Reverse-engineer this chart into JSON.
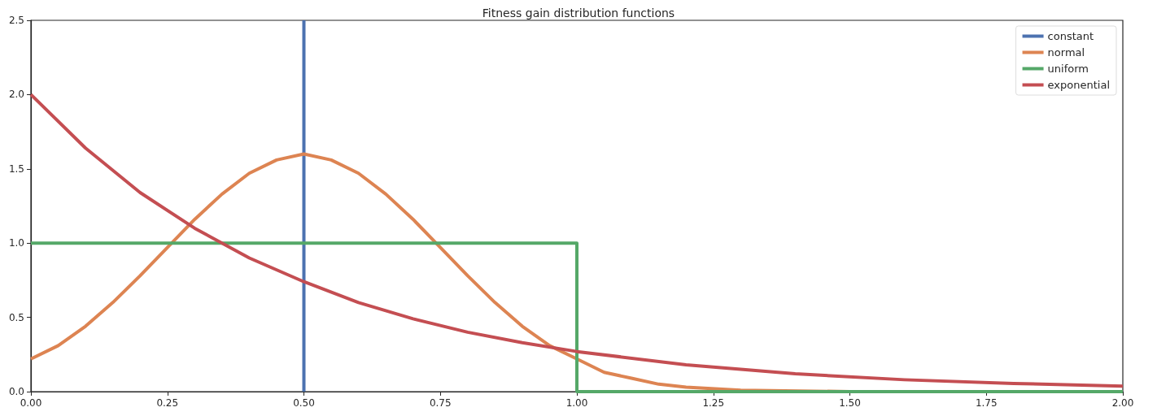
{
  "chart_data": {
    "type": "line",
    "title": "Fitness gain distribution functions",
    "xlim": [
      0,
      2
    ],
    "ylim": [
      0,
      2.5
    ],
    "xticks": [
      {
        "value": 0,
        "label": "0.00"
      },
      {
        "value": 0.25,
        "label": "0.25"
      },
      {
        "value": 0.5,
        "label": "0.50"
      },
      {
        "value": 0.75,
        "label": "0.75"
      },
      {
        "value": 1,
        "label": "1.00"
      },
      {
        "value": 1.25,
        "label": "1.25"
      },
      {
        "value": 1.5,
        "label": "1.50"
      },
      {
        "value": 1.75,
        "label": "1.75"
      },
      {
        "value": 2,
        "label": "2.00"
      }
    ],
    "yticks": [
      {
        "value": 0,
        "label": "0.0"
      },
      {
        "value": 0.5,
        "label": "0.5"
      },
      {
        "value": 1,
        "label": "1.0"
      },
      {
        "value": 1.5,
        "label": "1.5"
      },
      {
        "value": 2,
        "label": "2.0"
      },
      {
        "value": 2.5,
        "label": "2.5"
      }
    ],
    "grid": false,
    "legend": "top right",
    "marker": "none",
    "line_style": "solid",
    "series": [
      {
        "name": "constant",
        "color": "#4c72b0",
        "x": [
          0.5,
          0.5
        ],
        "values": [
          0,
          2.5
        ]
      },
      {
        "name": "normal",
        "color": "#dd8452",
        "x": [
          0,
          0.05,
          0.1,
          0.15,
          0.2,
          0.25,
          0.3,
          0.35,
          0.4,
          0.45,
          0.5,
          0.55,
          0.6,
          0.65,
          0.7,
          0.75,
          0.8,
          0.85,
          0.9,
          0.95,
          1,
          1.05,
          1.1,
          1.15,
          1.2,
          1.3,
          1.5,
          2
        ],
        "values": [
          0.22,
          0.31,
          0.44,
          0.6,
          0.78,
          0.97,
          1.16,
          1.33,
          1.47,
          1.56,
          1.6,
          1.56,
          1.47,
          1.33,
          1.16,
          0.97,
          0.78,
          0.6,
          0.44,
          0.31,
          0.22,
          0.13,
          0.09,
          0.05,
          0.03,
          0.01,
          0,
          0
        ]
      },
      {
        "name": "uniform",
        "color": "#55a868",
        "x": [
          0,
          1,
          1,
          2
        ],
        "values": [
          1,
          1,
          0,
          0
        ]
      },
      {
        "name": "exponential",
        "color": "#c44e52",
        "x": [
          0,
          0.1,
          0.2,
          0.3,
          0.4,
          0.5,
          0.6,
          0.7,
          0.8,
          0.9,
          1,
          1.2,
          1.4,
          1.6,
          1.8,
          2
        ],
        "values": [
          2,
          1.64,
          1.34,
          1.1,
          0.9,
          0.74,
          0.6,
          0.49,
          0.4,
          0.33,
          0.27,
          0.18,
          0.12,
          0.08,
          0.055,
          0.037
        ]
      }
    ]
  }
}
